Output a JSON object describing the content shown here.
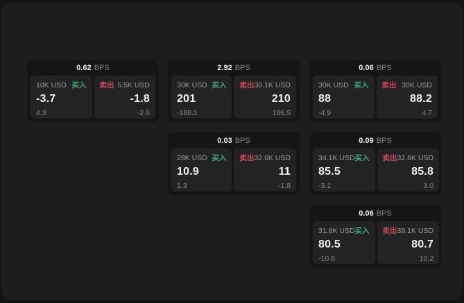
{
  "labels": {
    "bps": "BPS",
    "buy": "买入",
    "sell": "卖出"
  },
  "colors": {
    "outer-bg": "#131314",
    "panel-bg": "#1d1d1e",
    "card-bg": "#151516",
    "subcard-bg": "#232325",
    "buy-color": "#3fa873",
    "sell-color": "#cb4758",
    "text-bright": "#f0f0f1",
    "text-muted": "#98989c",
    "text-dim": "#85858a"
  },
  "cards": [
    {
      "bps": "0.62",
      "buy": {
        "amount": "10K USD",
        "price": "-3.7",
        "delta": "4.3"
      },
      "sell": {
        "amount": "5.5K USD",
        "price": "-1.8",
        "delta": "-2.6"
      }
    },
    {
      "bps": "2.92",
      "buy": {
        "amount": "30K USD",
        "price": "201",
        "delta": "-188.1"
      },
      "sell": {
        "amount": "30.1K USD",
        "price": "210",
        "delta": "196.5"
      }
    },
    {
      "bps": "0.06",
      "buy": {
        "amount": "30K USD",
        "price": "88",
        "delta": "-4.9"
      },
      "sell": {
        "amount": "30K USD",
        "price": "88.2",
        "delta": "4.7"
      }
    },
    {
      "bps": "0.03",
      "buy": {
        "amount": "28K USD",
        "price": "10.9",
        "delta": "1.3"
      },
      "sell": {
        "amount": "32.6K USD",
        "price": "11",
        "delta": "-1.8"
      }
    },
    {
      "bps": "0.09",
      "buy": {
        "amount": "34.1K USD",
        "price": "85.5",
        "delta": "-3.1"
      },
      "sell": {
        "amount": "32.8K USD",
        "price": "85.8",
        "delta": "3.0"
      }
    },
    {
      "bps": "0.06",
      "buy": {
        "amount": "31.8K USD",
        "price": "80.5",
        "delta": "-10.8"
      },
      "sell": {
        "amount": "39.1K USD",
        "price": "80.7",
        "delta": "10.2"
      }
    }
  ]
}
